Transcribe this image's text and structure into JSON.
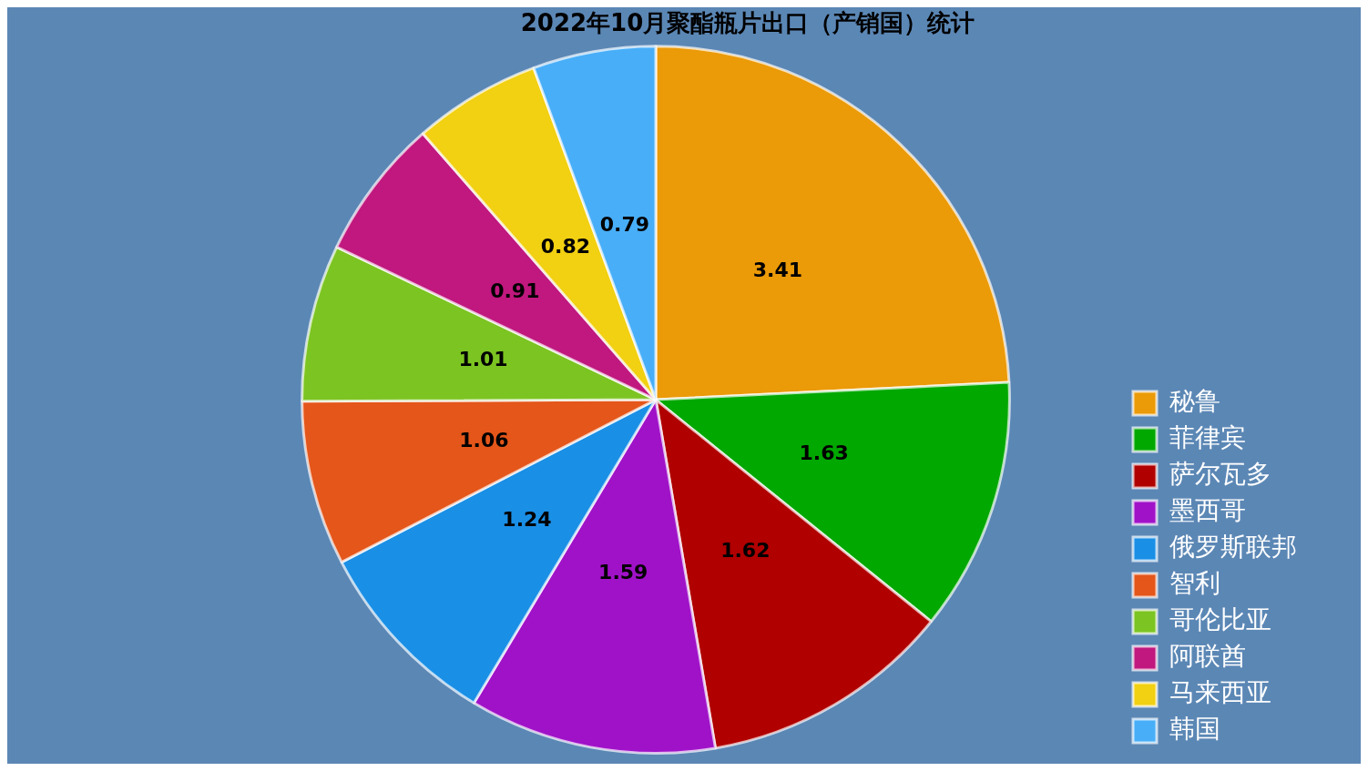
{
  "chart_data": {
    "type": "pie",
    "title": "2022年10月聚酯瓶片出口（产销国）统计",
    "categories": [
      "秘鲁",
      "菲律宾",
      "萨尔瓦多",
      "墨西哥",
      "俄罗斯联邦",
      "智利",
      "哥伦比亚",
      "阿联酋",
      "马来西亚",
      "韩国"
    ],
    "values": [
      3.41,
      1.63,
      1.62,
      1.59,
      1.24,
      1.06,
      1.01,
      0.91,
      0.82,
      0.79
    ],
    "colors": [
      "#eb9a08",
      "#00a800",
      "#b00000",
      "#a012c8",
      "#1a8fe6",
      "#e4561a",
      "#7cc422",
      "#c0187e",
      "#f2d012",
      "#48aef8"
    ],
    "data_labels": true,
    "legend": "right"
  }
}
